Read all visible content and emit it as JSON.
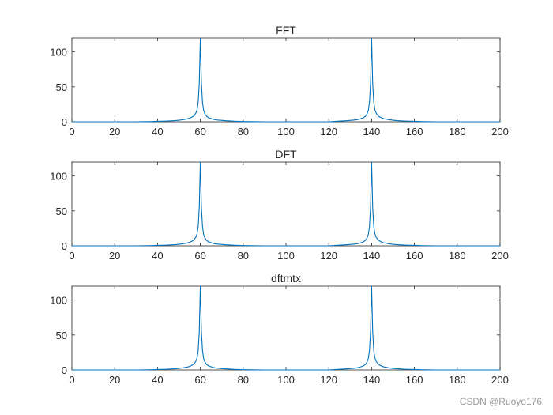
{
  "watermark": "CSDN @Ruoyo176",
  "chart_data": [
    {
      "type": "line",
      "title": "FFT",
      "xlim": [
        0,
        200
      ],
      "ylim": [
        0,
        120
      ],
      "xticks": [
        0,
        20,
        40,
        60,
        80,
        100,
        120,
        140,
        160,
        180,
        200
      ],
      "yticks": [
        0,
        50,
        100
      ],
      "grid": false,
      "color": "#0072BD",
      "series": [
        {
          "x": [
            0,
            10,
            20,
            30,
            36,
            40,
            44,
            48,
            50,
            52,
            54,
            55,
            56,
            57,
            58,
            58.5,
            59,
            59.5,
            60,
            60.5,
            61,
            61.5,
            62,
            63,
            64,
            66,
            68,
            72,
            76,
            80,
            90,
            100,
            110,
            120,
            124,
            128,
            132,
            134,
            136,
            137,
            138,
            138.5,
            139,
            139.5,
            140,
            140.5,
            141,
            141.5,
            142,
            143,
            144,
            145,
            146,
            148,
            150,
            152,
            156,
            160,
            164,
            170,
            180,
            190,
            200
          ],
          "y": [
            0,
            0,
            0,
            0,
            0.3,
            0.6,
            1,
            1.6,
            2.2,
            3,
            4.2,
            5,
            6.5,
            8.5,
            13,
            18,
            28,
            55,
            120,
            55,
            28,
            17,
            12,
            7.5,
            5.5,
            3.5,
            2.5,
            1.5,
            0.8,
            0.4,
            0,
            0,
            0,
            0,
            0.8,
            1.5,
            2.5,
            3.5,
            5.5,
            7.5,
            12,
            17,
            28,
            55,
            120,
            55,
            28,
            18,
            13,
            8.5,
            6.5,
            5,
            4.2,
            3,
            2.2,
            1.6,
            1,
            0.6,
            0.3,
            0,
            0,
            0,
            0
          ]
        }
      ]
    },
    {
      "type": "line",
      "title": "DFT",
      "xlim": [
        0,
        200
      ],
      "ylim": [
        0,
        120
      ],
      "xticks": [
        0,
        20,
        40,
        60,
        80,
        100,
        120,
        140,
        160,
        180,
        200
      ],
      "yticks": [
        0,
        50,
        100
      ],
      "grid": false,
      "color": "#0072BD",
      "series": [
        {
          "x": [
            0,
            10,
            20,
            30,
            36,
            40,
            44,
            48,
            50,
            52,
            54,
            55,
            56,
            57,
            58,
            58.5,
            59,
            59.5,
            60,
            60.5,
            61,
            61.5,
            62,
            63,
            64,
            66,
            68,
            72,
            76,
            80,
            90,
            100,
            110,
            120,
            124,
            128,
            132,
            134,
            136,
            137,
            138,
            138.5,
            139,
            139.5,
            140,
            140.5,
            141,
            141.5,
            142,
            143,
            144,
            145,
            146,
            148,
            150,
            152,
            156,
            160,
            164,
            170,
            180,
            190,
            200
          ],
          "y": [
            0,
            0,
            0,
            0,
            0.3,
            0.6,
            1,
            1.6,
            2.2,
            3,
            4.2,
            5,
            6.5,
            8.5,
            13,
            18,
            28,
            55,
            120,
            55,
            28,
            17,
            12,
            7.5,
            5.5,
            3.5,
            2.5,
            1.5,
            0.8,
            0.4,
            0,
            0,
            0,
            0,
            0.8,
            1.5,
            2.5,
            3.5,
            5.5,
            7.5,
            12,
            17,
            28,
            55,
            120,
            55,
            28,
            18,
            13,
            8.5,
            6.5,
            5,
            4.2,
            3,
            2.2,
            1.6,
            1,
            0.6,
            0.3,
            0,
            0,
            0,
            0
          ]
        }
      ]
    },
    {
      "type": "line",
      "title": "dftmtx",
      "xlim": [
        0,
        200
      ],
      "ylim": [
        0,
        120
      ],
      "xticks": [
        0,
        20,
        40,
        60,
        80,
        100,
        120,
        140,
        160,
        180,
        200
      ],
      "yticks": [
        0,
        50,
        100
      ],
      "grid": false,
      "color": "#0072BD",
      "series": [
        {
          "x": [
            0,
            10,
            20,
            30,
            36,
            40,
            44,
            48,
            50,
            52,
            54,
            55,
            56,
            57,
            58,
            58.5,
            59,
            59.5,
            60,
            60.5,
            61,
            61.5,
            62,
            63,
            64,
            66,
            68,
            72,
            76,
            80,
            90,
            100,
            110,
            120,
            124,
            128,
            132,
            134,
            136,
            137,
            138,
            138.5,
            139,
            139.5,
            140,
            140.5,
            141,
            141.5,
            142,
            143,
            144,
            145,
            146,
            148,
            150,
            152,
            156,
            160,
            164,
            170,
            180,
            190,
            200
          ],
          "y": [
            0,
            0,
            0,
            0,
            0.3,
            0.6,
            1,
            1.6,
            2.2,
            3,
            4.2,
            5,
            6.5,
            8.5,
            13,
            18,
            28,
            55,
            120,
            55,
            28,
            17,
            12,
            7.5,
            5.5,
            3.5,
            2.5,
            1.5,
            0.8,
            0.4,
            0,
            0,
            0,
            0,
            0.8,
            1.5,
            2.5,
            3.5,
            5.5,
            7.5,
            12,
            17,
            28,
            55,
            120,
            55,
            28,
            18,
            13,
            8.5,
            6.5,
            5,
            4.2,
            3,
            2.2,
            1.6,
            1,
            0.6,
            0.3,
            0,
            0,
            0,
            0
          ]
        }
      ]
    }
  ]
}
